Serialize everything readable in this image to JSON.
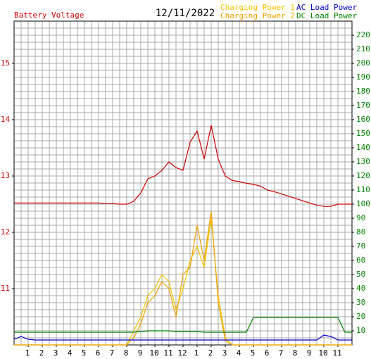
{
  "chart_data": {
    "type": "line",
    "title": "12/11/2022",
    "y_label": "Battery Voltage",
    "x": [
      0,
      0.5,
      1,
      1.5,
      2,
      2.5,
      3,
      3.5,
      4,
      4.5,
      5,
      5.5,
      6,
      6.5,
      7,
      7.5,
      8,
      8.5,
      9,
      9.5,
      10,
      10.5,
      11,
      11.5,
      12,
      12.5,
      13,
      13.5,
      14,
      14.5,
      15,
      15.5,
      16,
      16.5,
      17,
      17.5,
      18,
      18.5,
      19,
      19.5,
      20,
      20.5,
      21,
      21.5,
      22,
      22.5,
      23,
      23.5,
      24
    ],
    "xlim": [
      0,
      24
    ],
    "xticks": [
      1,
      2,
      3,
      4,
      5,
      6,
      7,
      8,
      9,
      10,
      11,
      12,
      {
        "value": 13,
        "label": "1"
      },
      {
        "value": 14,
        "label": "2"
      },
      {
        "value": 15,
        "label": "3"
      },
      {
        "value": 16,
        "label": "4"
      },
      {
        "value": 17,
        "label": "5"
      },
      {
        "value": 18,
        "label": "6"
      },
      {
        "value": 19,
        "label": "7"
      },
      {
        "value": 20,
        "label": "8"
      },
      {
        "value": 21,
        "label": "9"
      },
      {
        "value": 22,
        "label": "10"
      },
      {
        "value": 23,
        "label": "11"
      }
    ],
    "ylim": [
      10,
      15.75
    ],
    "yticks": [
      11,
      12,
      13,
      14,
      15
    ],
    "y2lim": [
      0,
      230
    ],
    "y2ticks": [
      10,
      20,
      30,
      40,
      50,
      60,
      70,
      80,
      90,
      100,
      110,
      120,
      130,
      140,
      150,
      160,
      170,
      180,
      190,
      200,
      210,
      220
    ],
    "grid": true,
    "series": [
      {
        "name": "Battery Voltage",
        "color": "#cc0000",
        "values": [
          12.52,
          12.52,
          12.52,
          12.52,
          12.52,
          12.52,
          12.52,
          12.52,
          12.52,
          12.52,
          12.52,
          12.52,
          12.52,
          12.51,
          12.51,
          12.5,
          12.5,
          12.55,
          12.7,
          12.95,
          13.0,
          13.1,
          13.25,
          13.15,
          13.1,
          13.6,
          13.8,
          13.3,
          13.9,
          13.3,
          13.0,
          12.92,
          12.9,
          12.87,
          12.85,
          12.82,
          12.75,
          12.72,
          12.68,
          12.64,
          12.6,
          12.56,
          12.52,
          12.48,
          12.46,
          12.46,
          12.5,
          12.5,
          12.5
        ]
      },
      {
        "name": "Charging Power 1",
        "color": "#f5c400",
        "axis": "y2",
        "values": [
          0,
          0,
          0,
          0,
          0,
          0,
          0,
          0,
          0,
          0,
          0,
          0,
          0,
          0,
          0,
          0,
          0,
          10,
          20,
          35,
          40,
          50,
          45,
          25,
          40,
          60,
          70,
          55,
          90,
          35,
          5,
          0,
          0,
          0,
          0,
          0,
          0,
          0,
          0,
          0,
          0,
          0,
          0,
          0,
          0,
          0,
          0,
          0,
          0
        ]
      },
      {
        "name": "Charging Power 2",
        "color": "#f0a000",
        "axis": "y2",
        "values": [
          0,
          0,
          0,
          0,
          0,
          0,
          0,
          0,
          0,
          0,
          0,
          0,
          0,
          0,
          0,
          0,
          0,
          5,
          15,
          30,
          35,
          45,
          40,
          20,
          50,
          55,
          85,
          60,
          95,
          30,
          3,
          0,
          0,
          0,
          0,
          0,
          0,
          0,
          0,
          0,
          0,
          0,
          0,
          0,
          0,
          0,
          0,
          0,
          0
        ]
      },
      {
        "name": "AC Load Power",
        "color": "#0000cc",
        "axis": "y2",
        "values": [
          4,
          6,
          4,
          3.5,
          3.5,
          3.5,
          3.5,
          3.5,
          3.5,
          3.5,
          3.5,
          3.5,
          3.5,
          3.5,
          3.5,
          3.5,
          3.5,
          3.5,
          3.5,
          3.5,
          3.5,
          3.5,
          3.5,
          3.5,
          3.5,
          3.5,
          3.5,
          3.5,
          3.5,
          3.5,
          3.5,
          3.5,
          3.5,
          3.5,
          3.5,
          3.5,
          3.5,
          3.5,
          3.5,
          3.5,
          3.5,
          3.5,
          3.5,
          3.5,
          7,
          6,
          3.5,
          3.5,
          3.5
        ]
      },
      {
        "name": "DC Load Power",
        "color": "#008000",
        "axis": "y2",
        "values": [
          9,
          9,
          9,
          9,
          9,
          9,
          9,
          9,
          9,
          9,
          9,
          9,
          9,
          9,
          9,
          9,
          9,
          9,
          9.5,
          10,
          10,
          10,
          10,
          9.5,
          9.5,
          9.5,
          9.5,
          9,
          9,
          9,
          9,
          9,
          9,
          9,
          19.5,
          19.5,
          19.5,
          19.5,
          19.5,
          19.5,
          19.5,
          19.5,
          19.5,
          19.5,
          19.5,
          19.5,
          19.5,
          9,
          9
        ]
      }
    ]
  }
}
